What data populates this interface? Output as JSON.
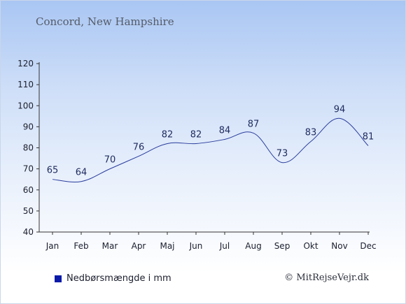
{
  "page": {
    "title": "Concord, New Hampshire",
    "credit": "© MitRejseVejr.dk"
  },
  "colors": {
    "line": "#2a3c9c",
    "legend_swatch": "#0b1aa8",
    "axis": "#333333"
  },
  "chart_data": {
    "type": "line",
    "title": "Concord, New Hampshire",
    "categories": [
      "Jan",
      "Feb",
      "Mar",
      "Apr",
      "Maj",
      "Jun",
      "Jul",
      "Aug",
      "Sep",
      "Okt",
      "Nov",
      "Dec"
    ],
    "series": [
      {
        "name": "Nedbørsmængde i mm",
        "values": [
          65,
          64,
          70,
          76,
          82,
          82,
          84,
          87,
          73,
          83,
          94,
          81
        ]
      }
    ],
    "ylim": [
      40,
      120
    ],
    "yticks": [
      40,
      50,
      60,
      70,
      80,
      90,
      100,
      110,
      120
    ],
    "grid": false,
    "legend": "bottom-left"
  }
}
